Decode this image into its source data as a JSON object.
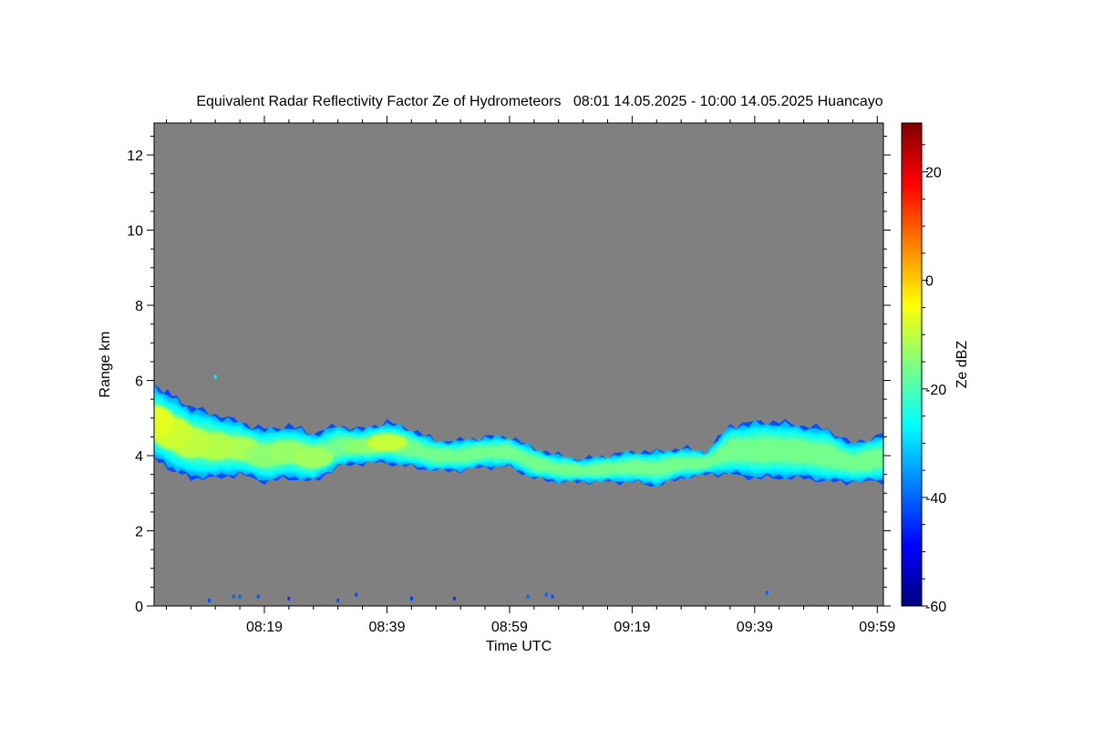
{
  "chart_data": {
    "type": "heatmap",
    "title": "Equivalent Radar Reflectivity Factor Ze of Hydrometeors   08:01 14.05.2025 - 10:00 14.05.2025 Huancayo",
    "xlabel": "Time UTC",
    "ylabel": "Range km",
    "colorbar_label": "Ze dBZ",
    "x_start": "08:01",
    "x_end": "10:00",
    "xlim_minutes": [
      481,
      600
    ],
    "x_ticks": [
      {
        "label": "08:19",
        "minute": 499
      },
      {
        "label": "08:39",
        "minute": 519
      },
      {
        "label": "08:59",
        "minute": 539
      },
      {
        "label": "09:19",
        "minute": 559
      },
      {
        "label": "09:39",
        "minute": 579
      },
      {
        "label": "09:59",
        "minute": 599
      }
    ],
    "ylim": [
      0,
      12.85
    ],
    "y_ticks": [
      0,
      2,
      4,
      6,
      8,
      10,
      12
    ],
    "colorbar_range": [
      -60,
      29
    ],
    "colorbar_ticks": [
      -60,
      -40,
      -20,
      0,
      20
    ],
    "colormap": [
      "#00007f",
      "#0000ff",
      "#007fff",
      "#00ffff",
      "#7fff7f",
      "#ffff00",
      "#ff7f00",
      "#ff0000",
      "#7f0000"
    ],
    "background_color": "#808080",
    "cloud_layer": [
      {
        "minute": 481,
        "base_km": 3.9,
        "top_km": 5.9,
        "core_dbz": -5
      },
      {
        "minute": 484,
        "base_km": 3.6,
        "top_km": 5.6,
        "core_dbz": -7
      },
      {
        "minute": 487,
        "base_km": 3.4,
        "top_km": 5.3,
        "core_dbz": -9
      },
      {
        "minute": 491,
        "base_km": 3.4,
        "top_km": 5.1,
        "core_dbz": -10
      },
      {
        "minute": 495,
        "base_km": 3.5,
        "top_km": 4.9,
        "core_dbz": -11
      },
      {
        "minute": 499,
        "base_km": 3.3,
        "top_km": 4.7,
        "core_dbz": -14
      },
      {
        "minute": 503,
        "base_km": 3.4,
        "top_km": 4.8,
        "core_dbz": -13
      },
      {
        "minute": 507,
        "base_km": 3.3,
        "top_km": 4.6,
        "core_dbz": -12
      },
      {
        "minute": 511,
        "base_km": 3.7,
        "top_km": 4.8,
        "core_dbz": -16
      },
      {
        "minute": 515,
        "base_km": 3.8,
        "top_km": 4.7,
        "core_dbz": -14
      },
      {
        "minute": 519,
        "base_km": 3.8,
        "top_km": 4.9,
        "core_dbz": -8
      },
      {
        "minute": 523,
        "base_km": 3.7,
        "top_km": 4.7,
        "core_dbz": -16
      },
      {
        "minute": 527,
        "base_km": 3.6,
        "top_km": 4.4,
        "core_dbz": -18
      },
      {
        "minute": 531,
        "base_km": 3.6,
        "top_km": 4.4,
        "core_dbz": -20
      },
      {
        "minute": 535,
        "base_km": 3.7,
        "top_km": 4.5,
        "core_dbz": -19
      },
      {
        "minute": 539,
        "base_km": 3.7,
        "top_km": 4.5,
        "core_dbz": -20
      },
      {
        "minute": 543,
        "base_km": 3.4,
        "top_km": 4.2,
        "core_dbz": -22
      },
      {
        "minute": 547,
        "base_km": 3.3,
        "top_km": 4.0,
        "core_dbz": -22
      },
      {
        "minute": 551,
        "base_km": 3.3,
        "top_km": 3.9,
        "core_dbz": -22
      },
      {
        "minute": 555,
        "base_km": 3.3,
        "top_km": 4.0,
        "core_dbz": -23
      },
      {
        "minute": 559,
        "base_km": 3.3,
        "top_km": 4.1,
        "core_dbz": -22
      },
      {
        "minute": 563,
        "base_km": 3.2,
        "top_km": 4.1,
        "core_dbz": -23
      },
      {
        "minute": 567,
        "base_km": 3.4,
        "top_km": 4.2,
        "core_dbz": -21
      },
      {
        "minute": 571,
        "base_km": 3.5,
        "top_km": 4.1,
        "core_dbz": -21
      },
      {
        "minute": 575,
        "base_km": 3.5,
        "top_km": 4.8,
        "core_dbz": -19
      },
      {
        "minute": 579,
        "base_km": 3.4,
        "top_km": 4.9,
        "core_dbz": -17
      },
      {
        "minute": 583,
        "base_km": 3.4,
        "top_km": 4.9,
        "core_dbz": -16
      },
      {
        "minute": 587,
        "base_km": 3.4,
        "top_km": 4.8,
        "core_dbz": -17
      },
      {
        "minute": 591,
        "base_km": 3.3,
        "top_km": 4.7,
        "core_dbz": -18
      },
      {
        "minute": 595,
        "base_km": 3.3,
        "top_km": 4.3,
        "core_dbz": -19
      },
      {
        "minute": 600,
        "base_km": 3.3,
        "top_km": 4.6,
        "core_dbz": -22
      }
    ],
    "isolated_echoes": [
      {
        "minute": 491,
        "range_km": 6.1,
        "dbz": -28
      },
      {
        "minute": 490,
        "range_km": 0.15,
        "dbz": -42
      },
      {
        "minute": 494,
        "range_km": 0.25,
        "dbz": -40
      },
      {
        "minute": 495,
        "range_km": 0.25,
        "dbz": -40
      },
      {
        "minute": 498,
        "range_km": 0.25,
        "dbz": -42
      },
      {
        "minute": 503,
        "range_km": 0.2,
        "dbz": -44
      },
      {
        "minute": 511,
        "range_km": 0.15,
        "dbz": -42
      },
      {
        "minute": 514,
        "range_km": 0.3,
        "dbz": -42
      },
      {
        "minute": 523,
        "range_km": 0.2,
        "dbz": -44
      },
      {
        "minute": 530,
        "range_km": 0.2,
        "dbz": -44
      },
      {
        "minute": 542,
        "range_km": 0.25,
        "dbz": -40
      },
      {
        "minute": 545,
        "range_km": 0.3,
        "dbz": -40
      },
      {
        "minute": 546,
        "range_km": 0.25,
        "dbz": -42
      },
      {
        "minute": 581,
        "range_km": 0.35,
        "dbz": -40
      }
    ]
  }
}
